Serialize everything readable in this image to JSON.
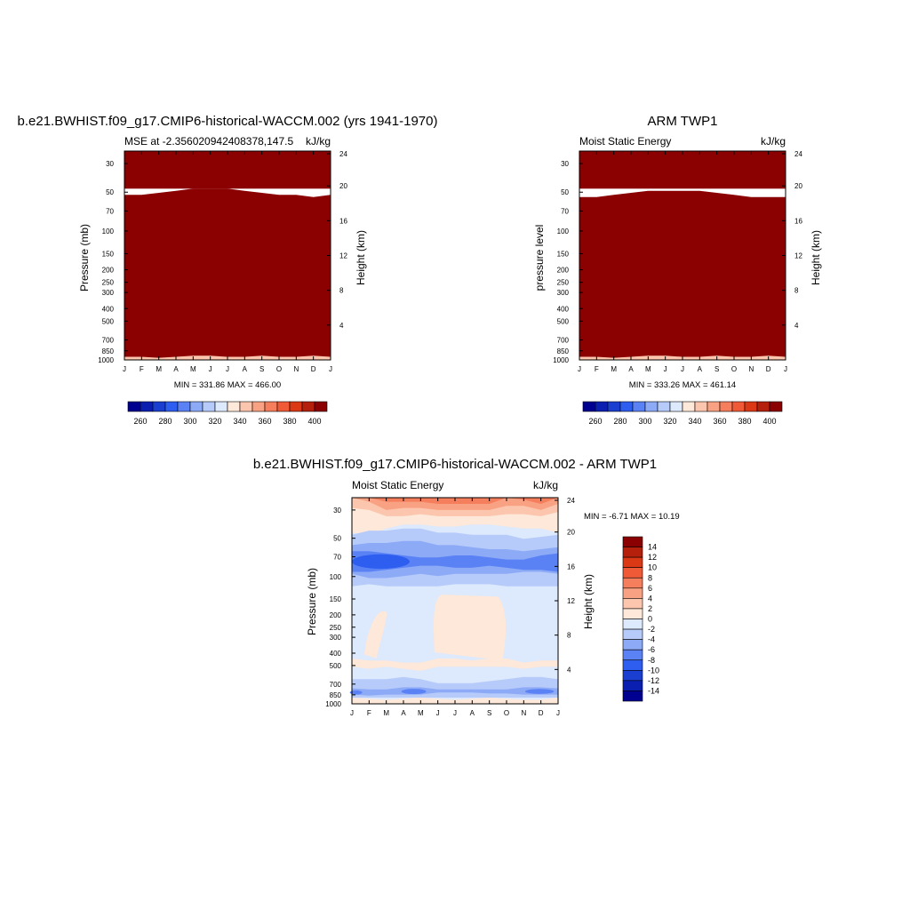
{
  "panels": {
    "model": {
      "title": "b.e21.BWHIST.f09_g17.CMIP6-historical-WACCM.002 (yrs 1941-1970)",
      "left_label": "MSE at -2.356020942408378,147.5",
      "right_label": "kJ/kg",
      "ylabel": "Pressure (mb)",
      "ylabel_right": "Height (km)",
      "minmax": "MIN = 331.86 MAX = 466.00"
    },
    "obs": {
      "title": "ARM TWP1",
      "left_label": "Moist Static Energy",
      "right_label": "kJ/kg",
      "ylabel": "pressure level",
      "ylabel_right": "Height (km)",
      "minmax": "MIN = 333.26 MAX = 461.14"
    },
    "diff": {
      "title": "b.e21.BWHIST.f09_g17.CMIP6-historical-WACCM.002 - ARM TWP1",
      "left_label": "Moist Static Energy",
      "right_label": "kJ/kg",
      "ylabel": "Pressure (mb)",
      "ylabel_right": "Height (km)",
      "minmax": "MIN =  -6.71 MAX =  10.19"
    }
  },
  "chart_data": [
    {
      "type": "contour",
      "panel": "model",
      "x_ticklabels": [
        "J",
        "F",
        "M",
        "A",
        "M",
        "J",
        "J",
        "A",
        "S",
        "O",
        "N",
        "D",
        "J"
      ],
      "y_ticks": [
        30,
        50,
        70,
        100,
        150,
        200,
        250,
        300,
        400,
        500,
        700,
        850,
        1000
      ],
      "y_range": [
        1000,
        24
      ],
      "y_scale": "log",
      "y_right_ticks": [
        4,
        8,
        12,
        16,
        20,
        24
      ],
      "y_right_unit": "km",
      "levels": [
        250,
        260,
        270,
        280,
        290,
        300,
        310,
        320,
        330,
        340,
        350,
        360,
        370,
        380,
        390,
        400
      ],
      "colorbar_ticklabels": [
        "260",
        "280",
        "300",
        "320",
        "340",
        "360",
        "380",
        "400"
      ],
      "colorbar_orientation": "horizontal",
      "colors": [
        "#000090",
        "#0a1fb0",
        "#1a3fd0",
        "#2d5ef0",
        "#5b82f5",
        "#8daaf7",
        "#b7cbfa",
        "#dde9fd",
        "#fde8d9",
        "#fcc6ae",
        "#f9a283",
        "#f57e5d",
        "#f05a36",
        "#db3815",
        "#b4200c",
        "#8b0000"
      ],
      "min": 331.86,
      "max": 466.0
    },
    {
      "type": "contour",
      "panel": "obs",
      "x_ticklabels": [
        "J",
        "F",
        "M",
        "A",
        "M",
        "J",
        "J",
        "A",
        "S",
        "O",
        "N",
        "D",
        "J"
      ],
      "y_ticks": [
        30,
        50,
        70,
        100,
        150,
        200,
        250,
        300,
        400,
        500,
        700,
        850,
        1000
      ],
      "y_range": [
        1000,
        24
      ],
      "y_scale": "log",
      "y_right_ticks": [
        4,
        8,
        12,
        16,
        20,
        24
      ],
      "y_right_unit": "km",
      "levels": [
        250,
        260,
        270,
        280,
        290,
        300,
        310,
        320,
        330,
        340,
        350,
        360,
        370,
        380,
        390,
        400
      ],
      "colorbar_ticklabels": [
        "260",
        "280",
        "300",
        "320",
        "340",
        "360",
        "380",
        "400"
      ],
      "colorbar_orientation": "horizontal",
      "colors": [
        "#000090",
        "#0a1fb0",
        "#1a3fd0",
        "#2d5ef0",
        "#5b82f5",
        "#8daaf7",
        "#b7cbfa",
        "#dde9fd",
        "#fde8d9",
        "#fcc6ae",
        "#f9a283",
        "#f57e5d",
        "#f05a36",
        "#db3815",
        "#b4200c",
        "#8b0000"
      ],
      "min": 333.26,
      "max": 461.14
    },
    {
      "type": "contour",
      "panel": "diff",
      "x_ticklabels": [
        "J",
        "F",
        "M",
        "A",
        "M",
        "J",
        "J",
        "A",
        "S",
        "O",
        "N",
        "D",
        "J"
      ],
      "y_ticks": [
        30,
        50,
        70,
        100,
        150,
        200,
        250,
        300,
        400,
        500,
        700,
        850,
        1000
      ],
      "y_range": [
        1000,
        24
      ],
      "y_scale": "log",
      "y_right_ticks": [
        4,
        8,
        12,
        16,
        20,
        24
      ],
      "y_right_unit": "km",
      "levels": [
        -14,
        -12,
        -10,
        -8,
        -6,
        -4,
        -2,
        0,
        2,
        4,
        6,
        8,
        10,
        12,
        14
      ],
      "colorbar_ticklabels": [
        "14",
        "12",
        "10",
        "8",
        "6",
        "4",
        "2",
        "0",
        "-2",
        "-4",
        "-6",
        "-8",
        "-10",
        "-12",
        "-14"
      ],
      "colorbar_orientation": "vertical",
      "colors": [
        "#000090",
        "#0a1fb0",
        "#1a3fd0",
        "#2d5ef0",
        "#5b82f5",
        "#8daaf7",
        "#b7cbfa",
        "#dde9fd",
        "#fde8d9",
        "#fcc6ae",
        "#f9a283",
        "#f57e5d",
        "#f05a36",
        "#db3815",
        "#b4200c",
        "#8b0000"
      ],
      "min": -6.71,
      "max": 10.19
    }
  ]
}
